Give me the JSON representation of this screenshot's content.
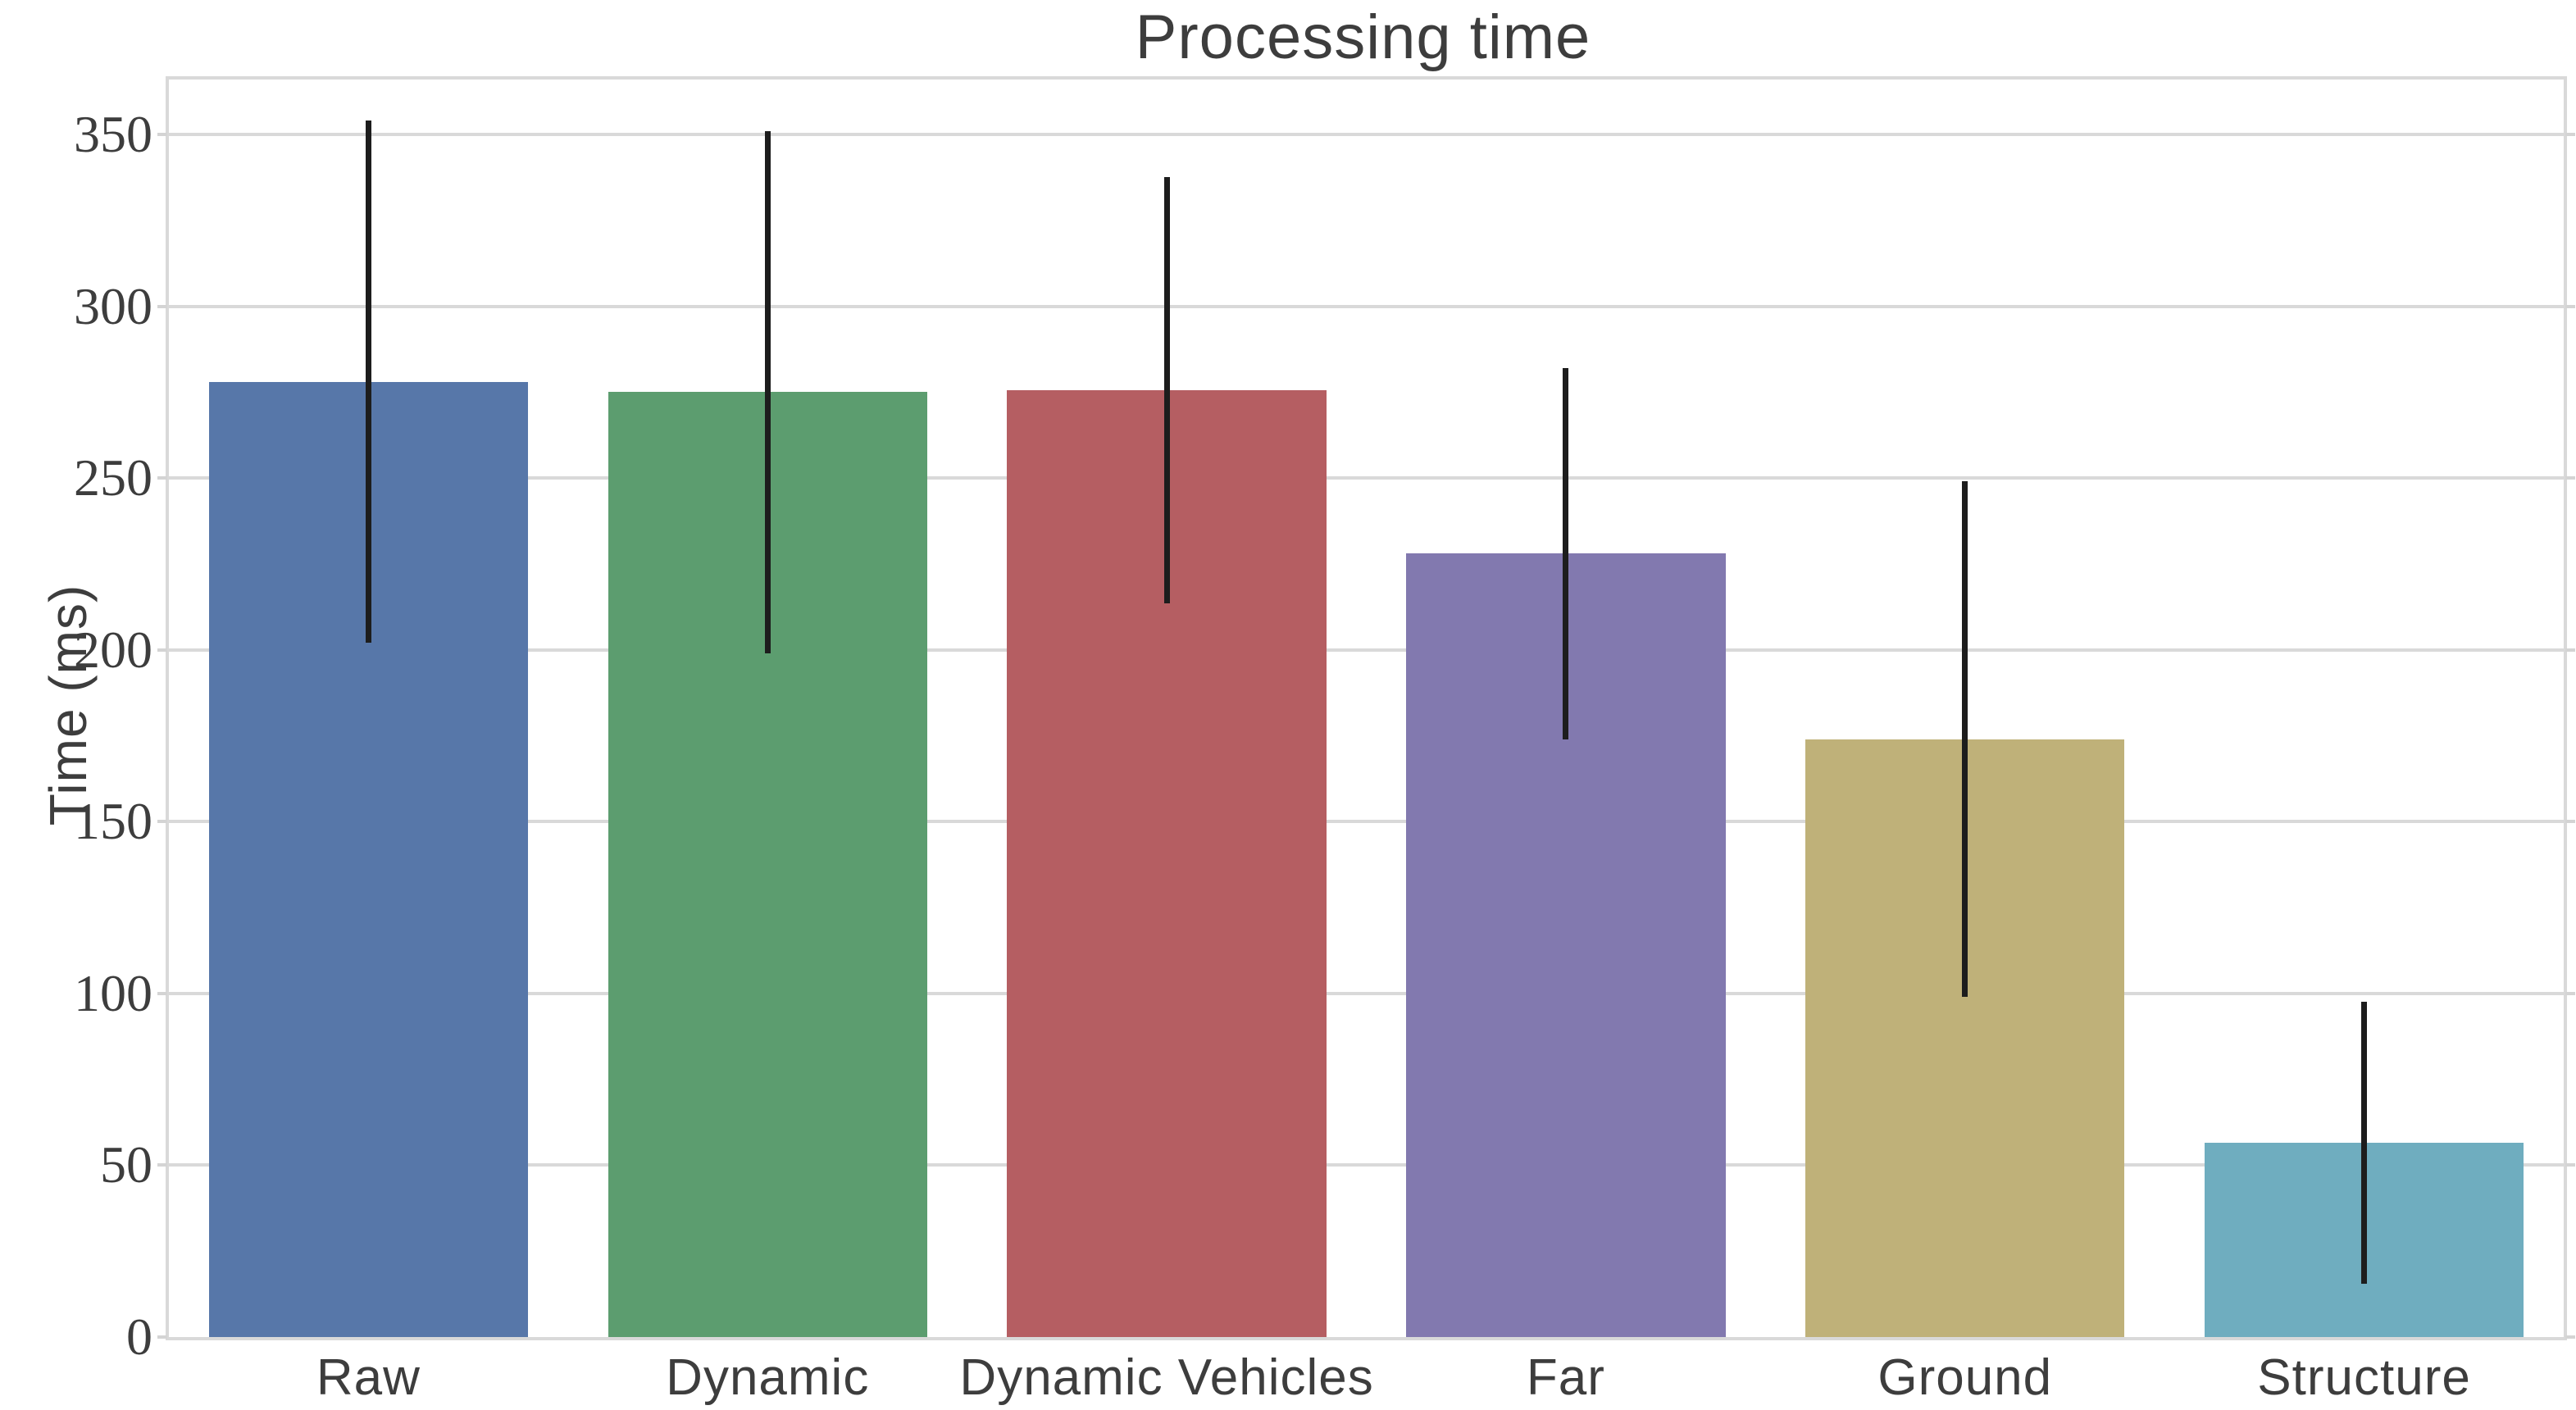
{
  "chart_data": {
    "type": "bar",
    "title": "Processing time",
    "xlabel": "",
    "ylabel": "Time (ms)",
    "categories": [
      "Raw",
      "Dynamic",
      "Dynamic Vehicles",
      "Far",
      "Ground",
      "Structure"
    ],
    "values": [
      278,
      275,
      275.5,
      228,
      174,
      56.5
    ],
    "error_plus_minus": [
      76,
      76,
      62,
      54,
      75,
      41
    ],
    "error_low": [
      202,
      199,
      213.5,
      174,
      99,
      15.5
    ],
    "error_high": [
      354,
      351,
      337.5,
      282,
      249,
      97.5
    ],
    "bar_colors": [
      "#5777A9",
      "#5C9D6F",
      "#B55E62",
      "#8279AF",
      "#BFB179",
      "#6FADBF"
    ],
    "yticks": [
      0,
      50,
      100,
      150,
      200,
      250,
      300,
      350
    ],
    "ylim": [
      0,
      366
    ],
    "grid": true,
    "legend_visible": false,
    "style": {
      "grid_color": "#d9d9d9",
      "error_bar_color": "#1d1d1d",
      "text_color": "#3d3d3d",
      "background_color": "#ffffff",
      "bar_width_fraction": 0.8
    }
  }
}
